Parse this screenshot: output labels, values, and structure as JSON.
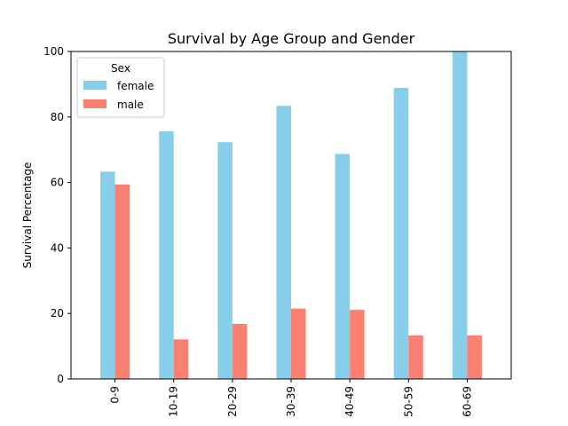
{
  "chart_data": {
    "type": "bar",
    "title": "Survival by Age Group and Gender",
    "xlabel": "",
    "ylabel": "Survival Percentage",
    "categories": [
      "0-9",
      "10-19",
      "20-29",
      "30-39",
      "40-49",
      "50-59",
      "60-69"
    ],
    "series": [
      {
        "name": "female",
        "color": "#87ceeb",
        "values": [
          63.3,
          75.6,
          72.3,
          83.4,
          68.7,
          88.9,
          100.0
        ]
      },
      {
        "name": "male",
        "color": "#fa8072",
        "values": [
          59.4,
          12.1,
          16.8,
          21.5,
          21.1,
          13.3,
          13.3
        ]
      }
    ],
    "ylim": [
      0,
      100
    ],
    "yticks": [
      0,
      20,
      40,
      60,
      80,
      100
    ],
    "grid": false,
    "legend": {
      "title": "Sex",
      "placement": "top-left"
    }
  }
}
